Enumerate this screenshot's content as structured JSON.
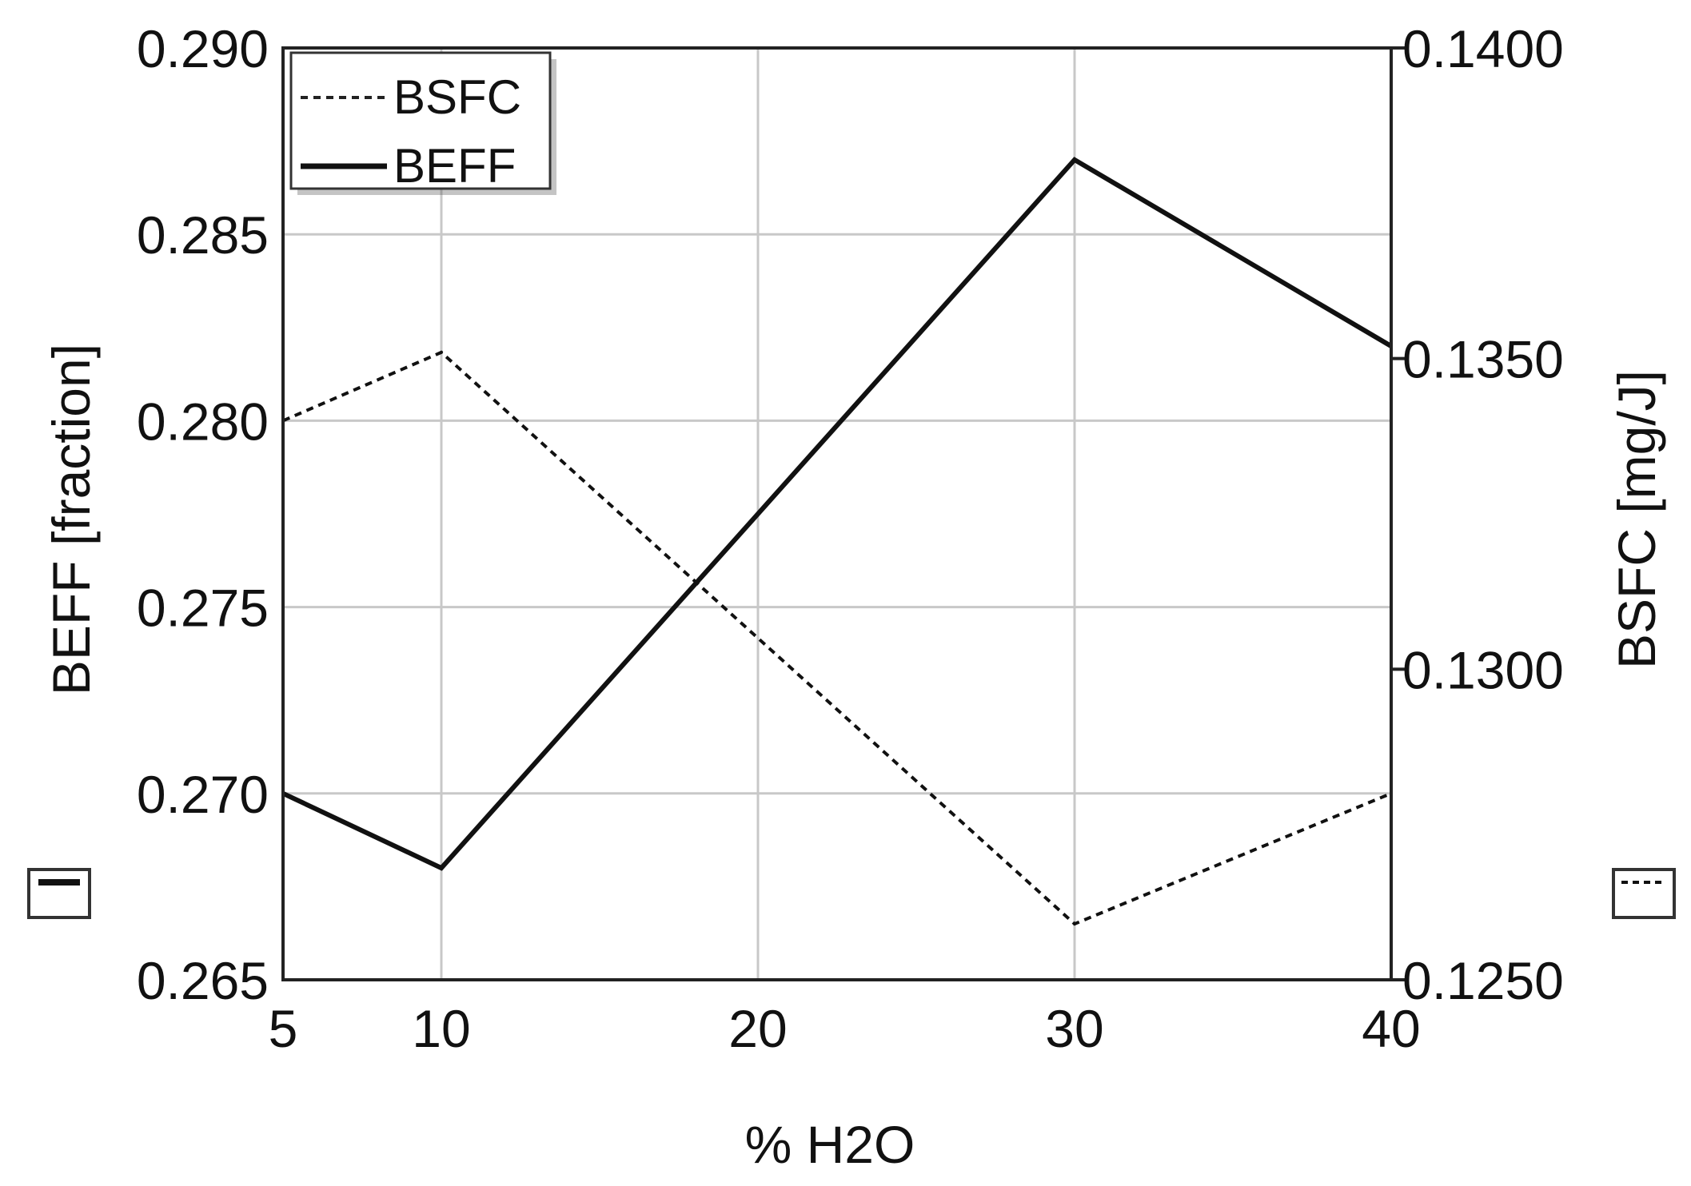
{
  "chart_data": {
    "type": "line",
    "title": "",
    "xlabel": "% H2O",
    "ylabel_left": "BEFF [fraction]",
    "ylabel_right": "BSFC [mg/J]",
    "xlim": [
      5,
      40
    ],
    "ylim_left": [
      0.265,
      0.29
    ],
    "ylim_right": [
      0.125,
      0.14
    ],
    "x_ticks": [
      5,
      10,
      20,
      30,
      40
    ],
    "x_tick_labels": [
      "5",
      "10",
      "20",
      "30",
      "40"
    ],
    "y_left_ticks": [
      0.265,
      0.27,
      0.275,
      0.28,
      0.285,
      0.29
    ],
    "y_left_tick_labels": [
      "0.265",
      "0.270",
      "0.275",
      "0.280",
      "0.285",
      "0.290"
    ],
    "y_right_ticks": [
      0.125,
      0.13,
      0.135,
      0.14
    ],
    "y_right_tick_labels": [
      "0.1250",
      "0.1300",
      "0.1350",
      "0.1400"
    ],
    "grid": true,
    "legend_position": "top-left",
    "series": [
      {
        "name": "BSFC",
        "axis": "right",
        "style": "dashed",
        "x": [
          5,
          10,
          30,
          40
        ],
        "y": [
          0.134,
          0.1351,
          0.1259,
          0.128
        ]
      },
      {
        "name": "BEFF",
        "axis": "left",
        "style": "solid",
        "x": [
          5,
          10,
          30,
          40
        ],
        "y": [
          0.27,
          0.268,
          0.287,
          0.282
        ]
      }
    ]
  }
}
